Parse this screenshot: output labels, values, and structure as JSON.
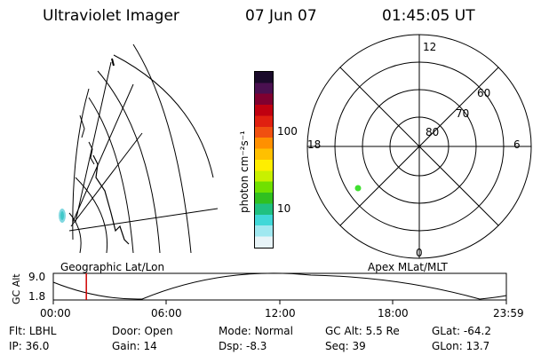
{
  "header": {
    "title": "Ultraviolet Imager",
    "date": "07 Jun 07",
    "time": "01:45:05 UT"
  },
  "colorbar": {
    "label": "photon cm⁻²s⁻¹",
    "ticks": [
      "100",
      "10"
    ],
    "colors": [
      "#1a0a2a",
      "#4a1050",
      "#800030",
      "#c00010",
      "#e02010",
      "#f05010",
      "#ff9000",
      "#ffc000",
      "#ffee00",
      "#c8f000",
      "#70e000",
      "#30c020",
      "#20c080",
      "#40d8d8",
      "#a0e8f0",
      "#e8f4f8"
    ]
  },
  "left_map": {
    "caption": "Geographic Lat/Lon"
  },
  "polar_plot": {
    "caption": "Apex MLat/MLT",
    "mlt_labels": {
      "top": "12",
      "right": "6",
      "bottom": "0",
      "left": "18"
    },
    "lat_labels": [
      "60",
      "70",
      "80"
    ]
  },
  "altitude_plot": {
    "ylabel": "GC Alt",
    "yticks": [
      "9.0",
      "1.8"
    ],
    "xticks": [
      "00:00",
      "06:00",
      "12:00",
      "18:00",
      "23:59"
    ],
    "current_time_fraction": 0.0729
  },
  "status": {
    "row1": [
      {
        "label": "Flt:",
        "value": "LBHL"
      },
      {
        "label": "Door:",
        "value": "Open"
      },
      {
        "label": "Mode:",
        "value": "Normal"
      },
      {
        "label": "GC Alt:",
        "value": "5.5 Re"
      },
      {
        "label": "GLat:",
        "value": "-64.2"
      }
    ],
    "row2": [
      {
        "label": "IP:",
        "value": "36.0"
      },
      {
        "label": "Gain:",
        "value": "14"
      },
      {
        "label": "Dsp:",
        "value": "-8.3"
      },
      {
        "label": "Seq:",
        "value": "39"
      },
      {
        "label": "GLon:",
        "value": "13.7"
      }
    ]
  }
}
